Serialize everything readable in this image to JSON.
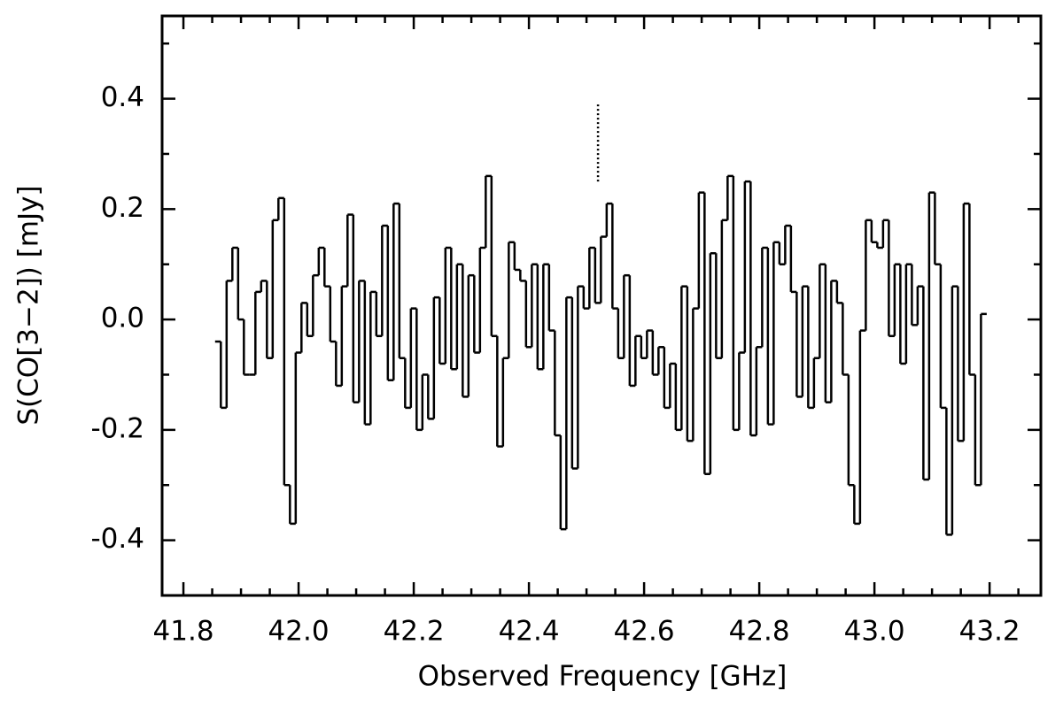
{
  "chart_data": {
    "type": "step",
    "xlabel": "Observed Frequency [GHz]",
    "ylabel": "S(CO[3−2]) [mJy]",
    "xlim": [
      41.763,
      43.289
    ],
    "ylim": [
      -0.5,
      0.55
    ],
    "xticks": [
      41.8,
      {
        "value": 42,
        "label": "42.0"
      },
      42.2,
      42.4,
      42.6,
      42.8,
      {
        "value": 43,
        "label": "43.0"
      },
      43.2
    ],
    "xminorticks": [
      41.85,
      41.9,
      41.95,
      42.05,
      42.1,
      42.15,
      42.25,
      42.3,
      42.35,
      42.45,
      42.5,
      42.55,
      42.65,
      42.7,
      42.75,
      42.85,
      42.9,
      42.95,
      43.05,
      43.1,
      43.15,
      43.25
    ],
    "yticks": [
      -0.4,
      -0.2,
      {
        "value": 0,
        "label": "0.0"
      },
      0.2,
      0.4
    ],
    "yminorticks": [
      -0.3,
      -0.1,
      0.1,
      0.3,
      0.5
    ],
    "color": "#000000",
    "marker_line": {
      "x": 42.52,
      "y": [
        0.25,
        0.39
      ]
    },
    "x": [
      41.86,
      41.87,
      41.88,
      41.89,
      41.9,
      41.91,
      41.92,
      41.93,
      41.94,
      41.95,
      41.96,
      41.97,
      41.98,
      41.99,
      42.0,
      42.01,
      42.02,
      42.03,
      42.04,
      42.05,
      42.06,
      42.07,
      42.08,
      42.09,
      42.1,
      42.11,
      42.12,
      42.13,
      42.14,
      42.15,
      42.16,
      42.17,
      42.18,
      42.19,
      42.2,
      42.21,
      42.22,
      42.23,
      42.24,
      42.25,
      42.26,
      42.27,
      42.28,
      42.29,
      42.3,
      42.31,
      42.32,
      42.33,
      42.34,
      42.35,
      42.36,
      42.37,
      42.38,
      42.39,
      42.4,
      42.41,
      42.42,
      42.43,
      42.44,
      42.45,
      42.46,
      42.47,
      42.48,
      42.49,
      42.5,
      42.51,
      42.52,
      42.53,
      42.54,
      42.55,
      42.56,
      42.57,
      42.58,
      42.59,
      42.6,
      42.61,
      42.62,
      42.63,
      42.64,
      42.65,
      42.66,
      42.67,
      42.68,
      42.69,
      42.7,
      42.71,
      42.72,
      42.73,
      42.74,
      42.75,
      42.76,
      42.77,
      42.78,
      42.79,
      42.8,
      42.81,
      42.82,
      42.83,
      42.84,
      42.85,
      42.86,
      42.87,
      42.88,
      42.89,
      42.9,
      42.91,
      42.92,
      42.93,
      42.94,
      42.95,
      42.96,
      42.97,
      42.98,
      42.99,
      43.0,
      43.01,
      43.02,
      43.03,
      43.04,
      43.05,
      43.06,
      43.07,
      43.08,
      43.09,
      43.1,
      43.11,
      43.12,
      43.13,
      43.14,
      43.15,
      43.16,
      43.17,
      43.18,
      43.19
    ],
    "values": [
      -0.04,
      -0.16,
      0.07,
      0.13,
      0.0,
      -0.1,
      -0.1,
      0.05,
      0.07,
      -0.07,
      0.18,
      0.22,
      -0.3,
      -0.37,
      -0.06,
      0.03,
      -0.03,
      0.08,
      0.13,
      0.06,
      -0.04,
      -0.12,
      0.06,
      0.19,
      -0.15,
      0.07,
      -0.19,
      0.05,
      -0.03,
      0.17,
      -0.11,
      0.21,
      -0.07,
      -0.16,
      0.02,
      -0.2,
      -0.1,
      -0.18,
      0.04,
      -0.08,
      0.13,
      -0.09,
      0.1,
      -0.14,
      0.08,
      -0.06,
      0.13,
      0.26,
      -0.03,
      -0.23,
      -0.07,
      0.14,
      0.09,
      0.07,
      -0.05,
      0.1,
      -0.09,
      0.1,
      -0.02,
      -0.21,
      -0.38,
      0.04,
      -0.27,
      0.06,
      0.02,
      0.13,
      0.03,
      0.15,
      0.21,
      0.02,
      -0.07,
      0.08,
      -0.12,
      -0.03,
      -0.07,
      -0.02,
      -0.1,
      -0.05,
      -0.16,
      -0.08,
      -0.2,
      0.06,
      -0.22,
      0.02,
      0.23,
      -0.28,
      0.12,
      -0.07,
      0.18,
      0.26,
      -0.2,
      -0.06,
      0.25,
      -0.21,
      -0.05,
      0.13,
      -0.19,
      0.14,
      0.1,
      0.17,
      0.05,
      -0.14,
      0.06,
      -0.16,
      -0.07,
      0.1,
      -0.15,
      0.07,
      0.03,
      -0.1,
      -0.3,
      -0.37,
      -0.02,
      0.18,
      0.14,
      0.13,
      0.18,
      -0.03,
      0.1,
      -0.08,
      0.1,
      -0.01,
      0.06,
      -0.29,
      0.23,
      0.1,
      -0.16,
      -0.39,
      0.06,
      -0.22,
      0.21,
      -0.1,
      -0.3,
      0.01
    ]
  }
}
